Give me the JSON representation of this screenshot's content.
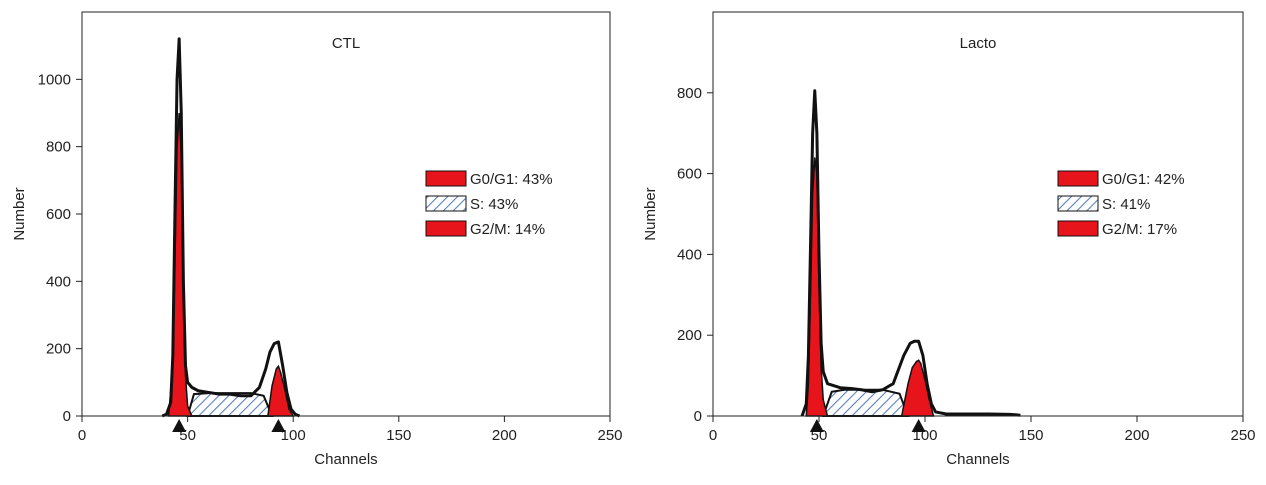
{
  "colors": {
    "g1_fill": "#e8141b",
    "g2_fill": "#e8141b",
    "s_fill": "#ffffff",
    "s_hatch": "#5a7fc0",
    "outline": "#111111",
    "axis": "#222222"
  },
  "chart_data": [
    {
      "type": "area",
      "title": "CTL",
      "xlabel": "Channels",
      "ylabel": "Number",
      "xlim": [
        0,
        250
      ],
      "ylim": [
        0,
        1200
      ],
      "x_ticks": [
        0,
        50,
        100,
        150,
        200,
        250
      ],
      "y_ticks": [
        0,
        200,
        400,
        600,
        800,
        1000
      ],
      "peak_markers": [
        46,
        93
      ],
      "legend": [
        {
          "label": "G0/G1: 43%",
          "phase": "G0/G1",
          "percent": 43,
          "pattern": "solid"
        },
        {
          "label": "S: 43%",
          "phase": "S",
          "percent": 43,
          "pattern": "hatch"
        },
        {
          "label": "G2/M: 14%",
          "phase": "G2/M",
          "percent": 14,
          "pattern": "solid"
        }
      ],
      "histogram": {
        "x": [
          38,
          40,
          42,
          43,
          44,
          45,
          46,
          47,
          48,
          49,
          50,
          52,
          55,
          60,
          65,
          70,
          75,
          80,
          84,
          87,
          89,
          91,
          93,
          95,
          97,
          99,
          101,
          103
        ],
        "y": [
          0,
          5,
          40,
          180,
          600,
          1000,
          1120,
          900,
          400,
          150,
          100,
          85,
          75,
          70,
          65,
          65,
          60,
          60,
          85,
          140,
          190,
          215,
          220,
          150,
          70,
          20,
          5,
          0
        ]
      },
      "g1_fit": {
        "x": [
          41,
          43,
          44,
          45,
          46,
          47,
          48,
          49,
          50,
          52
        ],
        "y": [
          0,
          150,
          450,
          800,
          900,
          780,
          380,
          120,
          30,
          0
        ]
      },
      "s_fit": {
        "x": [
          50,
          53,
          60,
          70,
          80,
          86,
          90
        ],
        "y": [
          0,
          65,
          68,
          68,
          68,
          60,
          0
        ]
      },
      "g2_fit": {
        "x": [
          88,
          90,
          92,
          93,
          94,
          96,
          98,
          100
        ],
        "y": [
          0,
          90,
          140,
          148,
          130,
          80,
          20,
          0
        ]
      }
    },
    {
      "type": "area",
      "title": "Lacto",
      "xlabel": "Channels",
      "ylabel": "Number",
      "xlim": [
        0,
        250
      ],
      "ylim": [
        0,
        1000
      ],
      "x_ticks": [
        0,
        50,
        100,
        150,
        200,
        250
      ],
      "y_ticks": [
        0,
        200,
        400,
        600,
        800
      ],
      "peak_markers": [
        49,
        97
      ],
      "legend": [
        {
          "label": "G0/G1: 42%",
          "phase": "G0/G1",
          "percent": 42,
          "pattern": "solid"
        },
        {
          "label": "S: 41%",
          "phase": "S",
          "percent": 41,
          "pattern": "hatch"
        },
        {
          "label": "G2/M: 17%",
          "phase": "G2/M",
          "percent": 17,
          "pattern": "solid"
        }
      ],
      "histogram": {
        "x": [
          42,
          44,
          45,
          46,
          47,
          48,
          49,
          50,
          51,
          52,
          54,
          57,
          60,
          65,
          70,
          75,
          80,
          85,
          90,
          93,
          95,
          97,
          99,
          101,
          103,
          105,
          110,
          120,
          130,
          140,
          145
        ],
        "y": [
          0,
          30,
          150,
          420,
          700,
          805,
          700,
          400,
          180,
          110,
          80,
          75,
          70,
          68,
          65,
          60,
          65,
          80,
          150,
          180,
          185,
          185,
          150,
          80,
          30,
          10,
          5,
          5,
          5,
          4,
          2
        ]
      },
      "g1_fit": {
        "x": [
          44,
          45,
          46,
          47,
          48,
          49,
          50,
          51,
          52,
          54
        ],
        "y": [
          0,
          80,
          300,
          550,
          640,
          600,
          320,
          120,
          40,
          0
        ]
      },
      "s_fit": {
        "x": [
          52,
          56,
          62,
          70,
          80,
          88,
          92
        ],
        "y": [
          0,
          60,
          65,
          65,
          65,
          55,
          0
        ]
      },
      "g2_fit": {
        "x": [
          89,
          92,
          94,
          96,
          97,
          98,
          100,
          102,
          104
        ],
        "y": [
          0,
          80,
          120,
          135,
          138,
          130,
          90,
          40,
          0
        ]
      }
    }
  ]
}
